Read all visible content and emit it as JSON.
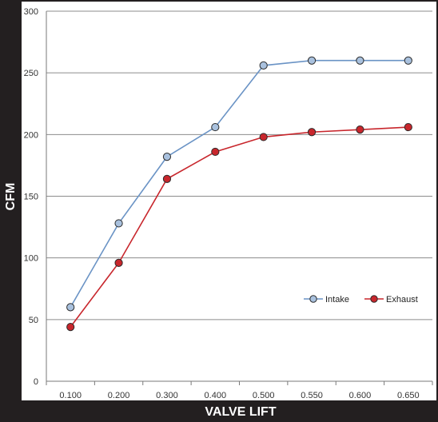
{
  "chart_data": {
    "type": "line",
    "xlabel": "VALVE LIFT",
    "ylabel": "CFM",
    "categories": [
      "0.100",
      "0.200",
      "0.300",
      "0.400",
      "0.500",
      "0.550",
      "0.600",
      "0.650"
    ],
    "ylim": [
      0,
      300
    ],
    "yticks": [
      0,
      50,
      100,
      150,
      200,
      250,
      300
    ],
    "grid": true,
    "legend_position": "bottom-right",
    "series": [
      {
        "name": "Intake",
        "color": "#6a93c5",
        "marker_color": "#a9c1de",
        "values": [
          60,
          128,
          182,
          206,
          256,
          260,
          260,
          260
        ]
      },
      {
        "name": "Exhaust",
        "color": "#c8262c",
        "marker_color": "#c8262c",
        "values": [
          44,
          96,
          164,
          186,
          198,
          202,
          204,
          206
        ]
      }
    ]
  }
}
